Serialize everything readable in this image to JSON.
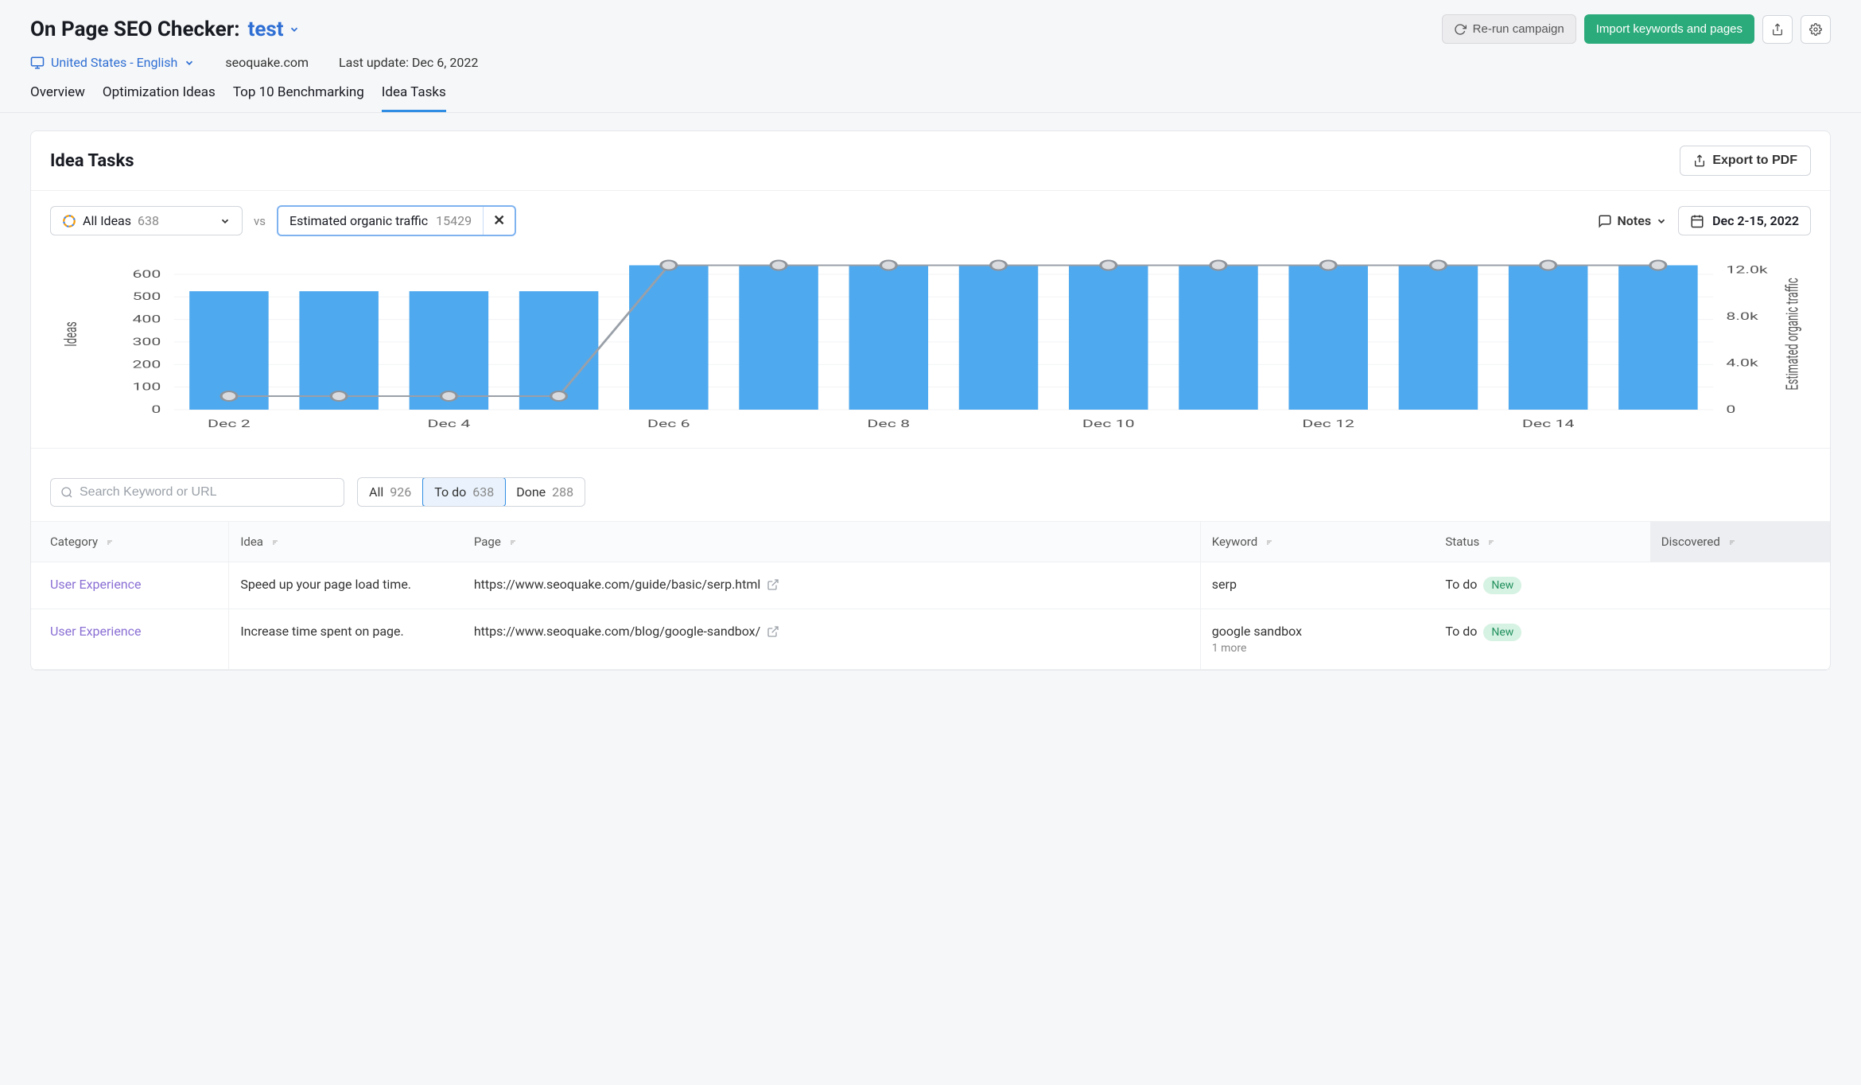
{
  "header": {
    "page_title": "On Page SEO Checker:",
    "project_name": "test",
    "locale": "United States - English",
    "domain": "seoquake.com",
    "last_update": "Last update: Dec 6, 2022",
    "buttons": {
      "rerun": "Re-run campaign",
      "import": "Import keywords and pages"
    },
    "tabs": [
      "Overview",
      "Optimization Ideas",
      "Top 10 Benchmarking",
      "Idea Tasks"
    ],
    "active_tab": 3
  },
  "card": {
    "title": "Idea Tasks",
    "export": "Export to PDF",
    "all_ideas_label": "All Ideas",
    "all_ideas_count": "638",
    "vs": "vs",
    "metric_label": "Estimated organic traffic",
    "metric_value": "15429",
    "notes": "Notes",
    "date_range": "Dec 2-15, 2022"
  },
  "chart": {
    "bar_color": "#4fa9ee",
    "line_color": "#9aa0a8",
    "marker_stroke": "#8f949b",
    "grid_color": "#f2f3f5",
    "background": "#ffffff",
    "y_left_label": "Ideas",
    "y_right_label": "Estimated organic traffic",
    "y_left_ticks": [
      0,
      100,
      200,
      300,
      400,
      500,
      600
    ],
    "y_left_max": 670,
    "y_right_ticks": [
      "0",
      "4.0k",
      "8.0k",
      "12.0k"
    ],
    "x_labels": [
      "Dec 2",
      "",
      "Dec 4",
      "",
      "Dec 6",
      "",
      "Dec 8",
      "",
      "Dec 10",
      "",
      "Dec 12",
      "",
      "Dec 14"
    ],
    "bar_values": [
      525,
      525,
      525,
      525,
      640,
      640,
      640,
      640,
      640,
      640,
      640,
      640,
      640,
      640
    ],
    "line_values": [
      60,
      60,
      60,
      60,
      640,
      640,
      640,
      640,
      640,
      640,
      640,
      640,
      640,
      640
    ]
  },
  "table_filters": {
    "search_placeholder": "Search Keyword or URL",
    "seg": [
      {
        "label": "All",
        "count": "926"
      },
      {
        "label": "To do",
        "count": "638"
      },
      {
        "label": "Done",
        "count": "288"
      }
    ],
    "active_seg": 1
  },
  "table": {
    "columns": [
      "Category",
      "Idea",
      "Page",
      "Keyword",
      "Status",
      "Discovered"
    ],
    "rows": [
      {
        "category": "User Experience",
        "idea": "Speed up your page load time.",
        "page": "https://www.seoquake.com/guide/basic/serp.html",
        "keyword": "serp",
        "keyword_more": "",
        "status": "To do",
        "badge": "New"
      },
      {
        "category": "User Experience",
        "idea": "Increase time spent on page.",
        "page": "https://www.seoquake.com/blog/google-sandbox/",
        "keyword": "google sandbox",
        "keyword_more": "1 more",
        "status": "To do",
        "badge": "New"
      }
    ]
  }
}
